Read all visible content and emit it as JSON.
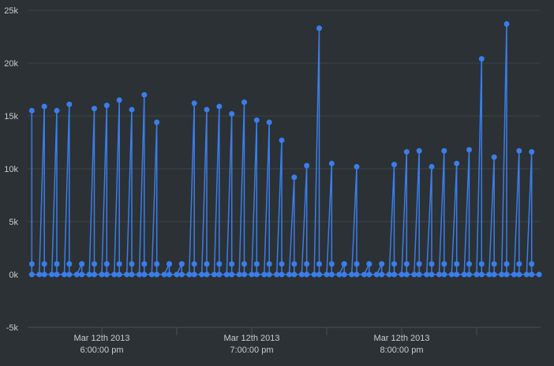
{
  "chart_data": {
    "type": "line",
    "title": "",
    "xlabel": "",
    "ylabel": "",
    "date": "Mar 12th 2013",
    "xlim": [
      "17:30",
      "20:56"
    ],
    "ylim": [
      -5000,
      25000
    ],
    "grid": true,
    "legend": "none",
    "colors": {
      "background": "#2b3135",
      "grid": "#3e4549",
      "line": "#3b7de9",
      "text": "#c8cccf"
    },
    "y_ticks": [
      {
        "value": 25000,
        "label": "25k"
      },
      {
        "value": 20000,
        "label": "20k"
      },
      {
        "value": 15000,
        "label": "15k"
      },
      {
        "value": 10000,
        "label": "10k"
      },
      {
        "value": 5000,
        "label": "5k"
      },
      {
        "value": 0,
        "label": "0k"
      },
      {
        "value": -5000,
        "label": "-5k"
      }
    ],
    "x_ticks": [
      {
        "time": "18:00",
        "line1": "Mar 12th 2013",
        "line2": "6:00:00 pm"
      },
      {
        "time": "18:30",
        "line1": "",
        "line2": ""
      },
      {
        "time": "19:00",
        "line1": "Mar 12th 2013",
        "line2": "7:00:00 pm"
      },
      {
        "time": "19:30",
        "line1": "",
        "line2": ""
      },
      {
        "time": "20:00",
        "line1": "Mar 12th 2013",
        "line2": "8:00:00 pm"
      },
      {
        "time": "20:30",
        "line1": "",
        "line2": ""
      }
    ],
    "series": [
      {
        "points": [
          [
            "17:32",
            15500
          ],
          [
            "17:32",
            1000
          ],
          [
            "17:32",
            0
          ],
          [
            "17:35",
            0
          ],
          [
            "17:37",
            15900
          ],
          [
            "17:37",
            1000
          ],
          [
            "17:37",
            0
          ],
          [
            "17:40",
            0
          ],
          [
            "17:42",
            15500
          ],
          [
            "17:42",
            1000
          ],
          [
            "17:42",
            0
          ],
          [
            "17:45",
            0
          ],
          [
            "17:47",
            16100
          ],
          [
            "17:47",
            1000
          ],
          [
            "17:47",
            0
          ],
          [
            "17:50",
            0
          ],
          [
            "17:52",
            1000
          ],
          [
            "17:52",
            1000
          ],
          [
            "17:52",
            0
          ],
          [
            "17:55",
            0
          ],
          [
            "17:57",
            15700
          ],
          [
            "17:57",
            1000
          ],
          [
            "17:57",
            0
          ],
          [
            "18:00",
            0
          ],
          [
            "18:02",
            16000
          ],
          [
            "18:02",
            1000
          ],
          [
            "18:02",
            0
          ],
          [
            "18:05",
            0
          ],
          [
            "18:07",
            16500
          ],
          [
            "18:07",
            1000
          ],
          [
            "18:07",
            0
          ],
          [
            "18:10",
            0
          ],
          [
            "18:12",
            15600
          ],
          [
            "18:12",
            1000
          ],
          [
            "18:12",
            0
          ],
          [
            "18:15",
            0
          ],
          [
            "18:17",
            17000
          ],
          [
            "18:17",
            1000
          ],
          [
            "18:17",
            0
          ],
          [
            "18:20",
            0
          ],
          [
            "18:22",
            14400
          ],
          [
            "18:22",
            1000
          ],
          [
            "18:22",
            0
          ],
          [
            "18:25",
            0
          ],
          [
            "18:27",
            1000
          ],
          [
            "18:27",
            1000
          ],
          [
            "18:27",
            0
          ],
          [
            "18:30",
            0
          ],
          [
            "18:32",
            1000
          ],
          [
            "18:32",
            1000
          ],
          [
            "18:32",
            0
          ],
          [
            "18:35",
            0
          ],
          [
            "18:37",
            16200
          ],
          [
            "18:37",
            1000
          ],
          [
            "18:37",
            0
          ],
          [
            "18:40",
            0
          ],
          [
            "18:42",
            15600
          ],
          [
            "18:42",
            1000
          ],
          [
            "18:42",
            0
          ],
          [
            "18:45",
            0
          ],
          [
            "18:47",
            15900
          ],
          [
            "18:47",
            1000
          ],
          [
            "18:47",
            0
          ],
          [
            "18:50",
            0
          ],
          [
            "18:52",
            15200
          ],
          [
            "18:52",
            1000
          ],
          [
            "18:52",
            0
          ],
          [
            "18:55",
            0
          ],
          [
            "18:57",
            16300
          ],
          [
            "18:57",
            1000
          ],
          [
            "18:57",
            0
          ],
          [
            "19:00",
            0
          ],
          [
            "19:02",
            14600
          ],
          [
            "19:02",
            1000
          ],
          [
            "19:02",
            0
          ],
          [
            "19:05",
            0
          ],
          [
            "19:07",
            14400
          ],
          [
            "19:07",
            1000
          ],
          [
            "19:07",
            0
          ],
          [
            "19:10",
            0
          ],
          [
            "19:12",
            12700
          ],
          [
            "19:12",
            1000
          ],
          [
            "19:12",
            0
          ],
          [
            "19:15",
            0
          ],
          [
            "19:17",
            9200
          ],
          [
            "19:17",
            1000
          ],
          [
            "19:17",
            0
          ],
          [
            "19:20",
            0
          ],
          [
            "19:22",
            10300
          ],
          [
            "19:22",
            1000
          ],
          [
            "19:22",
            0
          ],
          [
            "19:25",
            0
          ],
          [
            "19:27",
            23300
          ],
          [
            "19:27",
            1000
          ],
          [
            "19:27",
            0
          ],
          [
            "19:30",
            0
          ],
          [
            "19:32",
            10500
          ],
          [
            "19:32",
            1000
          ],
          [
            "19:32",
            0
          ],
          [
            "19:35",
            0
          ],
          [
            "19:37",
            1000
          ],
          [
            "19:37",
            1000
          ],
          [
            "19:37",
            0
          ],
          [
            "19:40",
            0
          ],
          [
            "19:42",
            10200
          ],
          [
            "19:42",
            1000
          ],
          [
            "19:42",
            0
          ],
          [
            "19:45",
            0
          ],
          [
            "19:47",
            1000
          ],
          [
            "19:47",
            1000
          ],
          [
            "19:47",
            0
          ],
          [
            "19:50",
            0
          ],
          [
            "19:52",
            1000
          ],
          [
            "19:52",
            1000
          ],
          [
            "19:52",
            0
          ],
          [
            "19:55",
            0
          ],
          [
            "19:57",
            10400
          ],
          [
            "19:57",
            1000
          ],
          [
            "19:57",
            0
          ],
          [
            "20:00",
            0
          ],
          [
            "20:02",
            11600
          ],
          [
            "20:02",
            1000
          ],
          [
            "20:02",
            0
          ],
          [
            "20:05",
            0
          ],
          [
            "20:07",
            11700
          ],
          [
            "20:07",
            1000
          ],
          [
            "20:07",
            0
          ],
          [
            "20:10",
            0
          ],
          [
            "20:12",
            10200
          ],
          [
            "20:12",
            1000
          ],
          [
            "20:12",
            0
          ],
          [
            "20:15",
            0
          ],
          [
            "20:17",
            11700
          ],
          [
            "20:17",
            1000
          ],
          [
            "20:17",
            0
          ],
          [
            "20:20",
            0
          ],
          [
            "20:22",
            10500
          ],
          [
            "20:22",
            1000
          ],
          [
            "20:22",
            0
          ],
          [
            "20:25",
            0
          ],
          [
            "20:27",
            11800
          ],
          [
            "20:27",
            1000
          ],
          [
            "20:27",
            0
          ],
          [
            "20:30",
            0
          ],
          [
            "20:32",
            20400
          ],
          [
            "20:32",
            1000
          ],
          [
            "20:32",
            0
          ],
          [
            "20:35",
            0
          ],
          [
            "20:37",
            11100
          ],
          [
            "20:37",
            1000
          ],
          [
            "20:37",
            0
          ],
          [
            "20:40",
            0
          ],
          [
            "20:42",
            23700
          ],
          [
            "20:42",
            1000
          ],
          [
            "20:42",
            0
          ],
          [
            "20:45",
            0
          ],
          [
            "20:47",
            11700
          ],
          [
            "20:47",
            1000
          ],
          [
            "20:47",
            0
          ],
          [
            "20:50",
            0
          ],
          [
            "20:52",
            11600
          ],
          [
            "20:52",
            1000
          ],
          [
            "20:52",
            0
          ],
          [
            "20:55",
            0
          ]
        ]
      }
    ]
  }
}
